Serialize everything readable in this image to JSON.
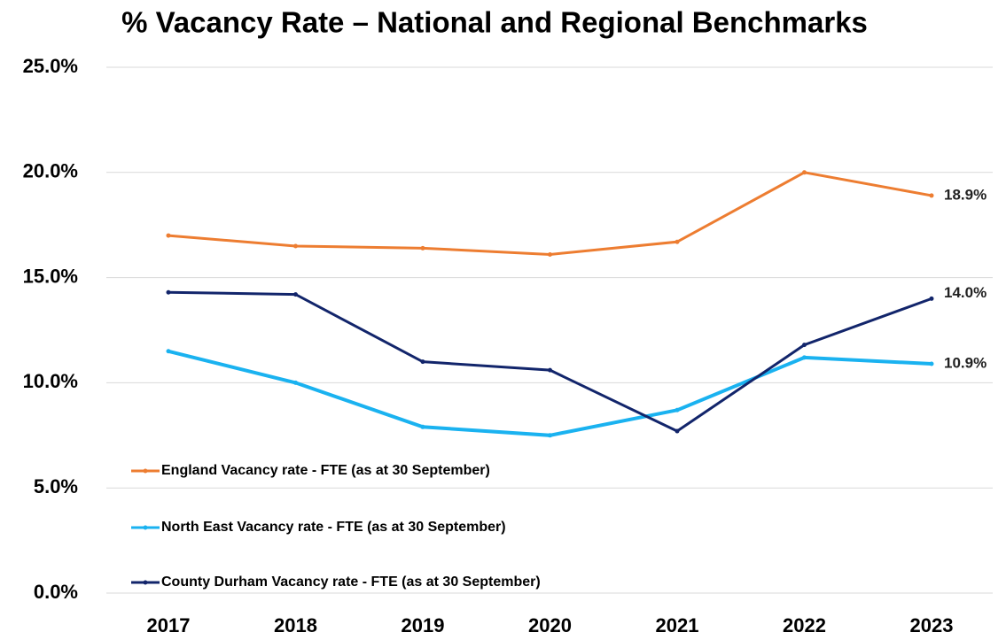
{
  "chart_data": {
    "type": "line",
    "title": "% Vacancy Rate – National and Regional Benchmarks",
    "categories": [
      "2017",
      "2018",
      "2019",
      "2020",
      "2021",
      "2022",
      "2023"
    ],
    "series": [
      {
        "name": "England Vacancy rate - FTE (as at 30 September)",
        "color": "#ed7d31",
        "values": [
          17.0,
          16.5,
          16.4,
          16.1,
          16.7,
          20.0,
          18.9
        ],
        "value_labels": [
          null,
          null,
          null,
          null,
          null,
          null,
          "18.9%"
        ]
      },
      {
        "name": "North East Vacancy rate - FTE (as at 30 September)",
        "color": "#1ab2f0",
        "values": [
          11.5,
          10.0,
          7.9,
          7.5,
          8.7,
          11.2,
          10.9
        ],
        "value_labels": [
          null,
          null,
          null,
          null,
          null,
          null,
          "10.9%"
        ]
      },
      {
        "name": "County Durham Vacancy rate - FTE (as at 30 September)",
        "color": "#12256b",
        "values": [
          14.3,
          14.2,
          11.0,
          10.6,
          7.7,
          11.8,
          14.0
        ],
        "value_labels": [
          null,
          null,
          null,
          null,
          null,
          null,
          "14.0%"
        ]
      }
    ],
    "ylim": [
      0,
      25
    ],
    "yticks": [
      {
        "value": 0,
        "label": "0.0%"
      },
      {
        "value": 5,
        "label": "5.0%"
      },
      {
        "value": 10,
        "label": "10.0%"
      },
      {
        "value": 15,
        "label": "15.0%"
      },
      {
        "value": 20,
        "label": "20.0%"
      },
      {
        "value": 25,
        "label": "25.0%"
      }
    ],
    "grid": true,
    "legend": "lower left"
  }
}
